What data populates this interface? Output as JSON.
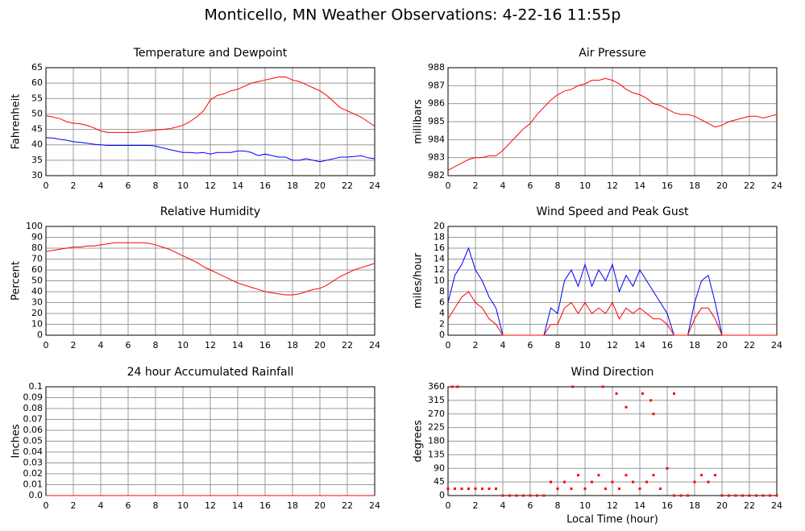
{
  "title": "Monticello, MN Weather Observations: 4-22-16 11:55p",
  "chart_data": [
    {
      "type": "line",
      "title": "Temperature and Dewpoint",
      "ylabel": "Fahrenheit",
      "grid": true,
      "xlim": [
        0,
        24
      ],
      "xticks": [
        0,
        2,
        4,
        6,
        8,
        10,
        12,
        14,
        16,
        18,
        20,
        22,
        24
      ],
      "ylim": [
        30,
        65
      ],
      "yticks": [
        30,
        35,
        40,
        45,
        50,
        55,
        60,
        65
      ],
      "x": [
        0,
        0.5,
        1,
        1.5,
        2,
        2.5,
        3,
        3.5,
        4,
        4.5,
        5,
        5.5,
        6,
        6.5,
        7,
        7.5,
        8,
        8.5,
        9,
        9.5,
        10,
        10.5,
        11,
        11.5,
        12,
        12.5,
        13,
        13.5,
        14,
        14.5,
        15,
        15.5,
        16,
        16.5,
        17,
        17.5,
        18,
        18.5,
        19,
        19.5,
        20,
        20.5,
        21,
        21.5,
        22,
        22.5,
        23,
        23.5,
        24
      ],
      "series": [
        {
          "color": "#ff0000",
          "values": [
            49.5,
            49,
            48.5,
            47.5,
            47,
            46.8,
            46.3,
            45.5,
            44.5,
            44,
            44,
            44,
            44,
            44,
            44.3,
            44.5,
            44.8,
            45,
            45.2,
            45.7,
            46.3,
            47.5,
            49,
            51,
            54.5,
            56,
            56.5,
            57.5,
            58,
            59,
            60,
            60.5,
            61,
            61.5,
            62,
            62,
            61,
            60.5,
            59.5,
            58.5,
            57.5,
            56,
            54,
            52,
            51,
            50,
            49,
            47.5,
            46
          ]
        },
        {
          "color": "#0000ff",
          "values": [
            42.3,
            42.2,
            41.8,
            41.5,
            41,
            40.8,
            40.5,
            40.2,
            40,
            39.8,
            39.8,
            39.8,
            39.8,
            39.8,
            39.8,
            39.8,
            39.6,
            39,
            38.5,
            38,
            37.5,
            37.5,
            37.3,
            37.5,
            37,
            37.5,
            37.5,
            37.5,
            38,
            38,
            37.5,
            36.5,
            37,
            36.5,
            36,
            36,
            35,
            35,
            35.5,
            35,
            34.5,
            35,
            35.5,
            36,
            36,
            36.2,
            36.5,
            35.8,
            35.5
          ]
        }
      ]
    },
    {
      "type": "line",
      "title": "Air Pressure",
      "ylabel": "millibars",
      "grid": true,
      "xlim": [
        0,
        24
      ],
      "xticks": [
        0,
        2,
        4,
        6,
        8,
        10,
        12,
        14,
        16,
        18,
        20,
        22,
        24
      ],
      "ylim": [
        982,
        988
      ],
      "yticks": [
        982,
        983,
        984,
        985,
        986,
        987,
        988
      ],
      "x": [
        0,
        0.5,
        1,
        1.5,
        2,
        2.5,
        3,
        3.5,
        4,
        4.5,
        5,
        5.5,
        6,
        6.5,
        7,
        7.5,
        8,
        8.5,
        9,
        9.5,
        10,
        10.5,
        11,
        11.5,
        12,
        12.5,
        13,
        13.5,
        14,
        14.5,
        15,
        15.5,
        16,
        16.5,
        17,
        17.5,
        18,
        18.5,
        19,
        19.5,
        20,
        20.5,
        21,
        21.5,
        22,
        22.5,
        23,
        23.5,
        24
      ],
      "series": [
        {
          "color": "#ff0000",
          "values": [
            982.3,
            982.5,
            982.7,
            982.9,
            983,
            983,
            983.1,
            983.1,
            983.4,
            983.8,
            984.2,
            984.6,
            984.9,
            985.4,
            985.8,
            986.2,
            986.5,
            986.7,
            986.8,
            987,
            987.1,
            987.3,
            987.3,
            987.4,
            987.3,
            987.1,
            986.8,
            986.6,
            986.5,
            986.3,
            986,
            985.9,
            985.7,
            985.5,
            985.4,
            985.4,
            985.3,
            985.1,
            984.9,
            984.7,
            984.8,
            985,
            985.1,
            985.2,
            985.3,
            985.3,
            985.2,
            985.3,
            985.4
          ]
        }
      ]
    },
    {
      "type": "line",
      "title": "Relative Humidity",
      "ylabel": "Percent",
      "grid": true,
      "xlim": [
        0,
        24
      ],
      "xticks": [
        0,
        2,
        4,
        6,
        8,
        10,
        12,
        14,
        16,
        18,
        20,
        22,
        24
      ],
      "ylim": [
        0,
        100
      ],
      "yticks": [
        0,
        10,
        20,
        30,
        40,
        50,
        60,
        70,
        80,
        90,
        100
      ],
      "x": [
        0,
        0.5,
        1,
        1.5,
        2,
        2.5,
        3,
        3.5,
        4,
        4.5,
        5,
        5.5,
        6,
        6.5,
        7,
        7.5,
        8,
        8.5,
        9,
        9.5,
        10,
        10.5,
        11,
        11.5,
        12,
        12.5,
        13,
        13.5,
        14,
        14.5,
        15,
        15.5,
        16,
        16.5,
        17,
        17.5,
        18,
        18.5,
        19,
        19.5,
        20,
        20.5,
        21,
        21.5,
        22,
        22.5,
        23,
        23.5,
        24
      ],
      "series": [
        {
          "color": "#ff0000",
          "values": [
            77,
            78,
            79,
            80,
            81,
            81,
            82,
            82,
            83,
            84,
            85,
            85,
            85,
            85,
            85,
            84.5,
            83,
            81,
            79,
            76,
            73,
            70,
            67,
            63,
            60,
            57,
            54,
            51,
            48,
            46,
            44,
            42,
            40,
            39,
            38,
            37,
            37,
            38,
            40,
            42,
            43,
            46,
            50,
            54,
            57,
            60,
            62,
            64,
            66
          ]
        }
      ]
    },
    {
      "type": "line",
      "title": "Wind Speed and Peak Gust",
      "ylabel": "miles/hour",
      "grid": true,
      "xlim": [
        0,
        24
      ],
      "xticks": [
        0,
        2,
        4,
        6,
        8,
        10,
        12,
        14,
        16,
        18,
        20,
        22,
        24
      ],
      "ylim": [
        0,
        20
      ],
      "yticks": [
        0,
        2,
        4,
        6,
        8,
        10,
        12,
        14,
        16,
        18,
        20
      ],
      "x": [
        0,
        0.5,
        1,
        1.5,
        2,
        2.5,
        3,
        3.5,
        4,
        4.5,
        5,
        5.5,
        6,
        6.5,
        7,
        7.5,
        8,
        8.5,
        9,
        9.5,
        10,
        10.5,
        11,
        11.5,
        12,
        12.5,
        13,
        13.5,
        14,
        14.5,
        15,
        15.5,
        16,
        16.5,
        17,
        17.5,
        18,
        18.5,
        19,
        19.5,
        20,
        20.5,
        21,
        21.5,
        22,
        22.5,
        23,
        23.5,
        24
      ],
      "series": [
        {
          "color": "#0000ff",
          "values": [
            6,
            11,
            13,
            16,
            12,
            10,
            7,
            5,
            0,
            0,
            0,
            0,
            0,
            0,
            0,
            5,
            4,
            10,
            12,
            9,
            13,
            9,
            12,
            10,
            13,
            8,
            11,
            9,
            12,
            10,
            8,
            6,
            4,
            0,
            0,
            0,
            6,
            10,
            11,
            6,
            0,
            0,
            0,
            0,
            0,
            0,
            0,
            0,
            0
          ]
        },
        {
          "color": "#ff0000",
          "values": [
            3,
            5,
            7,
            8,
            6,
            5,
            3,
            2,
            0,
            0,
            0,
            0,
            0,
            0,
            0,
            2,
            2,
            5,
            6,
            4,
            6,
            4,
            5,
            4,
            6,
            3,
            5,
            4,
            5,
            4,
            3,
            3,
            2,
            0,
            0,
            0,
            3,
            5,
            5,
            3,
            0,
            0,
            0,
            0,
            0,
            0,
            0,
            0,
            0
          ]
        }
      ]
    },
    {
      "type": "line",
      "title": "24 hour Accumulated Rainfall",
      "ylabel": "Inches",
      "grid": true,
      "xlim": [
        0,
        24
      ],
      "xticks": [
        0,
        2,
        4,
        6,
        8,
        10,
        12,
        14,
        16,
        18,
        20,
        22,
        24
      ],
      "ylim": [
        0,
        0.1
      ],
      "yticks": [
        {
          "value": 0,
          "label": "0.0"
        },
        0.01,
        0.02,
        0.03,
        0.04,
        0.05,
        0.06,
        0.07,
        0.08,
        0.09,
        0.1
      ],
      "x": [
        0,
        24
      ],
      "series": [
        {
          "color": "#ff0000",
          "values": [
            0,
            0
          ]
        }
      ]
    },
    {
      "type": "scatter",
      "title": "Wind Direction",
      "ylabel": "degrees",
      "xlabel": "Local Time (hour)",
      "grid": true,
      "xlim": [
        0,
        24
      ],
      "xticks": [
        0,
        2,
        4,
        6,
        8,
        10,
        12,
        14,
        16,
        18,
        20,
        22,
        24
      ],
      "ylim": [
        0,
        360
      ],
      "yticks": [
        0,
        45,
        90,
        135,
        180,
        225,
        270,
        315,
        360
      ],
      "x": [
        0,
        0.5,
        1,
        1.5,
        2,
        2.5,
        3,
        3.5,
        4,
        4.5,
        5,
        5.5,
        6,
        6.5,
        7,
        7.5,
        8,
        8.5,
        9,
        9.5,
        10,
        10.5,
        11,
        11.5,
        12,
        12.5,
        13,
        13.5,
        14,
        14.5,
        15,
        15.5,
        16,
        16.5,
        17,
        17.5,
        18,
        18.5,
        19,
        19.5,
        20,
        20.5,
        21,
        21.5,
        22,
        22.5,
        23,
        23.5,
        24,
        0.3,
        0.7,
        9.1,
        11.3,
        12.3,
        13,
        14.2,
        14.8,
        15,
        16.5
      ],
      "series": [
        {
          "color": "#ff0000",
          "values": [
            22.5,
            22.5,
            22.5,
            22.5,
            22.5,
            22.5,
            22.5,
            22.5,
            0,
            0,
            0,
            0,
            0,
            0,
            0,
            45,
            22.5,
            45,
            22.5,
            67.5,
            22.5,
            45,
            67.5,
            22.5,
            45,
            22.5,
            67.5,
            45,
            22.5,
            45,
            67.5,
            22.5,
            90,
            0,
            0,
            0,
            45,
            67.5,
            45,
            67.5,
            0,
            0,
            0,
            0,
            0,
            0,
            0,
            0,
            0,
            360,
            360,
            360,
            360,
            337.5,
            292.5,
            337.5,
            315,
            270,
            337.5
          ]
        }
      ]
    }
  ]
}
